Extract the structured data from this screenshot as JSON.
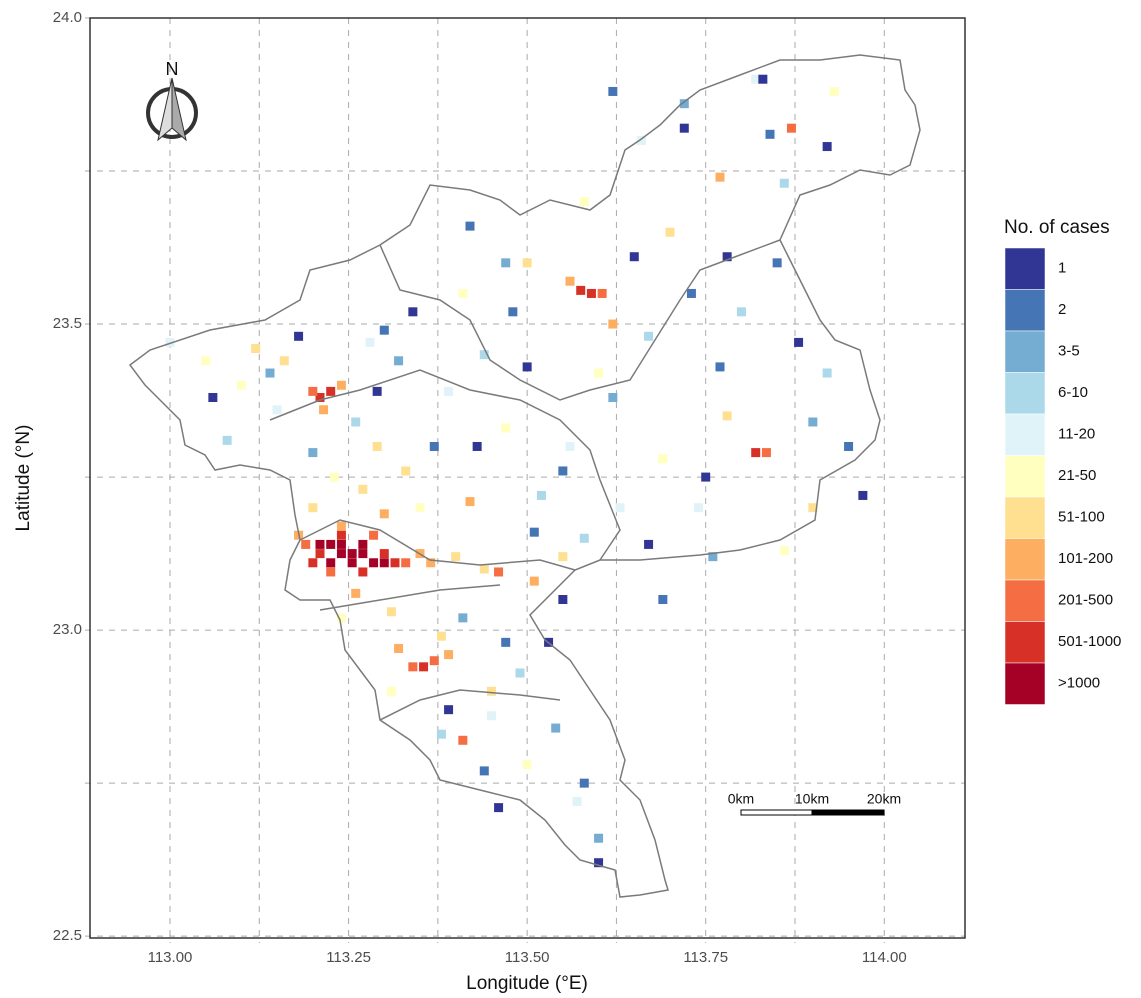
{
  "chart_data": {
    "type": "grid-map",
    "x_label": "Longitude (°E)",
    "y_label": "Latitude (°N)",
    "xlim": [
      112.888,
      114.113
    ],
    "ylim": [
      22.497,
      24.0
    ],
    "xticks": [
      {
        "value": 113,
        "label": "113.00"
      },
      {
        "value": 113.25,
        "label": "113.25"
      },
      {
        "value": 113.5,
        "label": "113.50"
      },
      {
        "value": 113.75,
        "label": "113.75"
      },
      {
        "value": 114,
        "label": "114.00"
      }
    ],
    "yticks": [
      22.5,
      {
        "value": 23,
        "label": "23.0"
      },
      23.5,
      {
        "value": 24,
        "label": "24.0"
      }
    ],
    "xminor": [
      113.125,
      113.375,
      113.625,
      113.875
    ],
    "yminor": [
      22.75,
      23.25,
      23.75
    ],
    "grid": true,
    "north_label": "N",
    "legend": {
      "title": "No. of cases",
      "position": "right",
      "labels": [
        "1",
        "2",
        "3-5",
        "6-10",
        "11-20",
        "21-50",
        "51-100",
        "101-200",
        "201-500",
        "501-1000",
        ">1000"
      ],
      "colors": [
        "#313695",
        "#4575b4",
        "#74add1",
        "#abd9e9",
        "#e0f3f8",
        "#ffffbf",
        "#fee090",
        "#fdae61",
        "#f46d43",
        "#d73027",
        "#a50026"
      ]
    },
    "scale_bar": [
      "0km",
      "10km",
      "20km"
    ],
    "cells": [
      [
        113.21,
        23.14,
        10
      ],
      [
        113.225,
        23.14,
        10
      ],
      [
        113.24,
        23.14,
        10
      ],
      [
        113.255,
        23.125,
        10
      ],
      [
        113.27,
        23.125,
        10
      ],
      [
        113.24,
        23.125,
        10
      ],
      [
        113.225,
        23.11,
        10
      ],
      [
        113.255,
        23.11,
        10
      ],
      [
        113.285,
        23.11,
        10
      ],
      [
        113.27,
        23.14,
        10
      ],
      [
        113.3,
        23.11,
        10
      ],
      [
        113.2,
        23.11,
        9
      ],
      [
        113.24,
        23.155,
        9
      ],
      [
        113.3,
        23.125,
        9
      ],
      [
        113.315,
        23.11,
        9
      ],
      [
        113.21,
        23.125,
        9
      ],
      [
        113.27,
        23.095,
        9
      ],
      [
        113.59,
        23.55,
        9
      ],
      [
        113.575,
        23.555,
        9
      ],
      [
        113.355,
        22.94,
        9
      ],
      [
        113.82,
        23.29,
        9
      ],
      [
        113.21,
        23.38,
        9
      ],
      [
        113.225,
        23.39,
        9
      ],
      [
        113.19,
        23.14,
        8
      ],
      [
        113.33,
        23.11,
        8
      ],
      [
        113.285,
        23.155,
        8
      ],
      [
        113.225,
        23.095,
        8
      ],
      [
        113.2,
        23.39,
        8
      ],
      [
        113.37,
        22.95,
        8
      ],
      [
        113.34,
        22.94,
        8
      ],
      [
        113.605,
        23.55,
        8
      ],
      [
        113.835,
        23.29,
        8
      ],
      [
        113.41,
        22.82,
        8
      ],
      [
        113.87,
        23.82,
        8
      ],
      [
        113.46,
        23.095,
        8
      ],
      [
        113.35,
        23.125,
        7
      ],
      [
        113.365,
        23.11,
        7
      ],
      [
        113.18,
        23.155,
        7
      ],
      [
        113.24,
        23.17,
        7
      ],
      [
        113.3,
        23.19,
        7
      ],
      [
        113.215,
        23.36,
        7
      ],
      [
        113.24,
        23.4,
        7
      ],
      [
        113.39,
        22.96,
        7
      ],
      [
        113.32,
        22.97,
        7
      ],
      [
        113.56,
        23.57,
        7
      ],
      [
        113.77,
        23.74,
        7
      ],
      [
        113.51,
        23.08,
        7
      ],
      [
        113.42,
        23.21,
        7
      ],
      [
        113.26,
        23.06,
        7
      ],
      [
        113.62,
        23.5,
        7
      ],
      [
        113.2,
        23.2,
        6
      ],
      [
        113.33,
        23.26,
        6
      ],
      [
        113.29,
        23.3,
        6
      ],
      [
        113.4,
        23.12,
        6
      ],
      [
        113.44,
        23.1,
        6
      ],
      [
        113.31,
        23.03,
        6
      ],
      [
        113.38,
        22.99,
        6
      ],
      [
        113.16,
        23.44,
        6
      ],
      [
        113.12,
        23.46,
        6
      ],
      [
        113.45,
        22.9,
        6
      ],
      [
        113.5,
        23.6,
        6
      ],
      [
        113.7,
        23.65,
        6
      ],
      [
        113.78,
        23.35,
        6
      ],
      [
        113.9,
        23.2,
        6
      ],
      [
        113.55,
        23.12,
        6
      ],
      [
        113.27,
        23.23,
        6
      ],
      [
        113.05,
        23.44,
        5
      ],
      [
        113.1,
        23.4,
        5
      ],
      [
        113.23,
        23.25,
        5
      ],
      [
        113.35,
        23.2,
        5
      ],
      [
        113.47,
        23.33,
        5
      ],
      [
        113.6,
        23.42,
        5
      ],
      [
        113.69,
        23.28,
        5
      ],
      [
        113.86,
        23.13,
        5
      ],
      [
        113.31,
        22.9,
        5
      ],
      [
        113.5,
        22.78,
        5
      ],
      [
        113.58,
        23.7,
        5
      ],
      [
        113.93,
        23.88,
        5
      ],
      [
        113.24,
        23.02,
        5
      ],
      [
        113.41,
        23.55,
        5
      ],
      [
        113.0,
        23.47,
        4
      ],
      [
        113.15,
        23.36,
        4
      ],
      [
        113.28,
        23.47,
        4
      ],
      [
        113.39,
        23.39,
        4
      ],
      [
        113.56,
        23.3,
        4
      ],
      [
        113.74,
        23.2,
        4
      ],
      [
        113.66,
        23.8,
        4
      ],
      [
        113.82,
        23.9,
        4
      ],
      [
        113.45,
        22.86,
        4
      ],
      [
        113.57,
        22.72,
        4
      ],
      [
        113.63,
        23.2,
        4
      ],
      [
        113.08,
        23.31,
        3
      ],
      [
        113.26,
        23.34,
        3
      ],
      [
        113.44,
        23.45,
        3
      ],
      [
        113.52,
        23.22,
        3
      ],
      [
        113.67,
        23.48,
        3
      ],
      [
        113.8,
        23.52,
        3
      ],
      [
        113.92,
        23.42,
        3
      ],
      [
        113.49,
        22.93,
        3
      ],
      [
        113.38,
        22.83,
        3
      ],
      [
        113.86,
        23.73,
        3
      ],
      [
        113.58,
        23.15,
        3
      ],
      [
        113.14,
        23.42,
        2
      ],
      [
        113.32,
        23.44,
        2
      ],
      [
        113.47,
        23.6,
        2
      ],
      [
        113.62,
        23.38,
        2
      ],
      [
        113.76,
        23.12,
        2
      ],
      [
        113.9,
        23.34,
        2
      ],
      [
        113.54,
        22.84,
        2
      ],
      [
        113.41,
        23.02,
        2
      ],
      [
        113.72,
        23.86,
        2
      ],
      [
        113.2,
        23.29,
        2
      ],
      [
        113.6,
        22.66,
        2
      ],
      [
        113.3,
        23.49,
        1
      ],
      [
        113.48,
        23.52,
        1
      ],
      [
        113.55,
        23.26,
        1
      ],
      [
        113.73,
        23.55,
        1
      ],
      [
        113.85,
        23.6,
        1
      ],
      [
        113.95,
        23.3,
        1
      ],
      [
        113.58,
        22.75,
        1
      ],
      [
        113.44,
        22.77,
        1
      ],
      [
        113.42,
        23.66,
        1
      ],
      [
        113.69,
        23.05,
        1
      ],
      [
        113.84,
        23.81,
        1
      ],
      [
        113.37,
        23.3,
        1
      ],
      [
        113.51,
        23.16,
        1
      ],
      [
        113.77,
        23.43,
        1
      ],
      [
        113.62,
        23.88,
        1
      ],
      [
        113.47,
        22.98,
        1
      ],
      [
        113.06,
        23.38,
        0
      ],
      [
        113.18,
        23.48,
        0
      ],
      [
        113.34,
        23.52,
        0
      ],
      [
        113.43,
        23.3,
        0
      ],
      [
        113.5,
        23.43,
        0
      ],
      [
        113.65,
        23.61,
        0
      ],
      [
        113.78,
        23.61,
        0
      ],
      [
        113.88,
        23.47,
        0
      ],
      [
        113.97,
        23.22,
        0
      ],
      [
        113.67,
        23.14,
        0
      ],
      [
        113.53,
        22.98,
        0
      ],
      [
        113.46,
        22.71,
        0
      ],
      [
        113.6,
        22.62,
        0
      ],
      [
        113.39,
        22.87,
        0
      ],
      [
        113.29,
        23.39,
        0
      ],
      [
        113.72,
        23.82,
        0
      ],
      [
        113.83,
        23.9,
        0
      ],
      [
        113.92,
        23.79,
        0
      ],
      [
        113.55,
        23.05,
        0
      ],
      [
        113.75,
        23.25,
        0
      ]
    ]
  }
}
